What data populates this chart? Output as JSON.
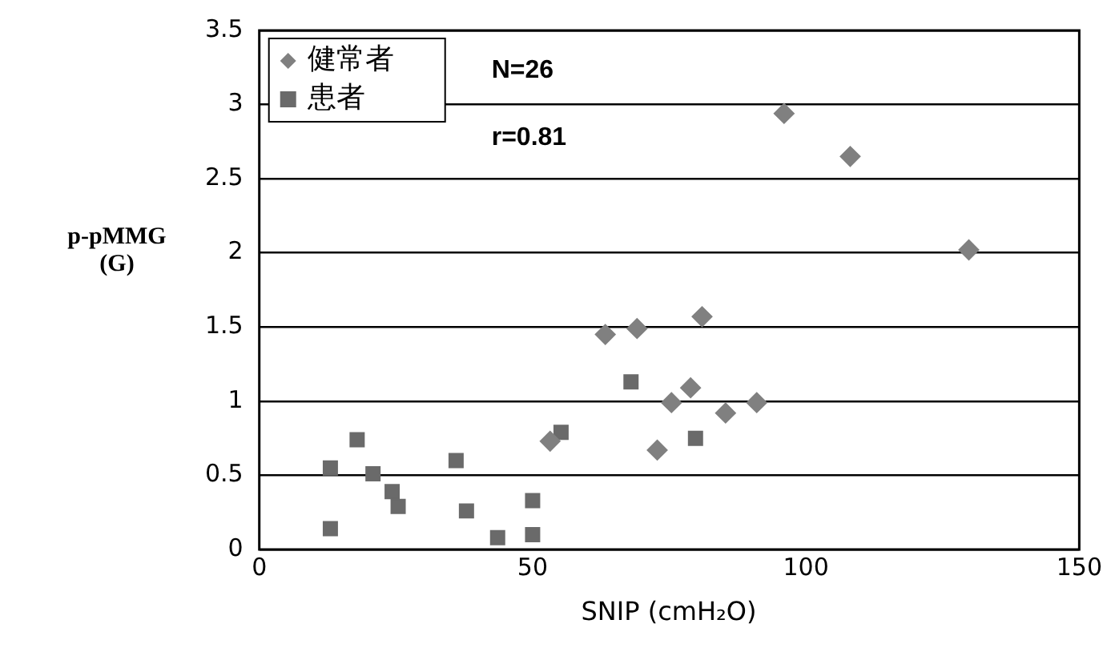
{
  "chart_data": {
    "type": "scatter",
    "xlabel": "SNIP (cmH₂O)",
    "ylabel": "p-pMMG\n(G)",
    "xlim": [
      0,
      150
    ],
    "xticks": [
      0,
      50,
      100,
      150
    ],
    "ylim": [
      0,
      3.5
    ],
    "yticks": [
      0,
      0.5,
      1,
      1.5,
      2,
      2.5,
      3,
      3.5
    ],
    "grid": "y",
    "legend": "top left",
    "annotations": [
      "N=26",
      "r=0.81"
    ],
    "series": [
      {
        "name": "健常者",
        "color": "#808080",
        "marker": "diamond",
        "x": [
          53.2,
          63.3,
          69.1,
          81,
          75.4,
          78.9,
          85.3,
          91,
          72.8,
          96,
          108.1,
          129.8
        ],
        "values": [
          0.73,
          1.45,
          1.49,
          1.57,
          0.99,
          1.09,
          0.92,
          0.99,
          0.67,
          2.94,
          2.65,
          2.02
        ]
      },
      {
        "name": "患者",
        "color": "#6a6a6a",
        "marker": "square",
        "x": [
          13,
          13,
          17.9,
          20.8,
          24.3,
          25.4,
          36,
          37.9,
          43.6,
          50,
          50,
          55.2,
          68,
          79.8
        ],
        "values": [
          0.14,
          0.55,
          0.74,
          0.51,
          0.39,
          0.29,
          0.6,
          0.26,
          0.08,
          0.33,
          0.1,
          0.79,
          1.13,
          0.75
        ]
      }
    ]
  }
}
